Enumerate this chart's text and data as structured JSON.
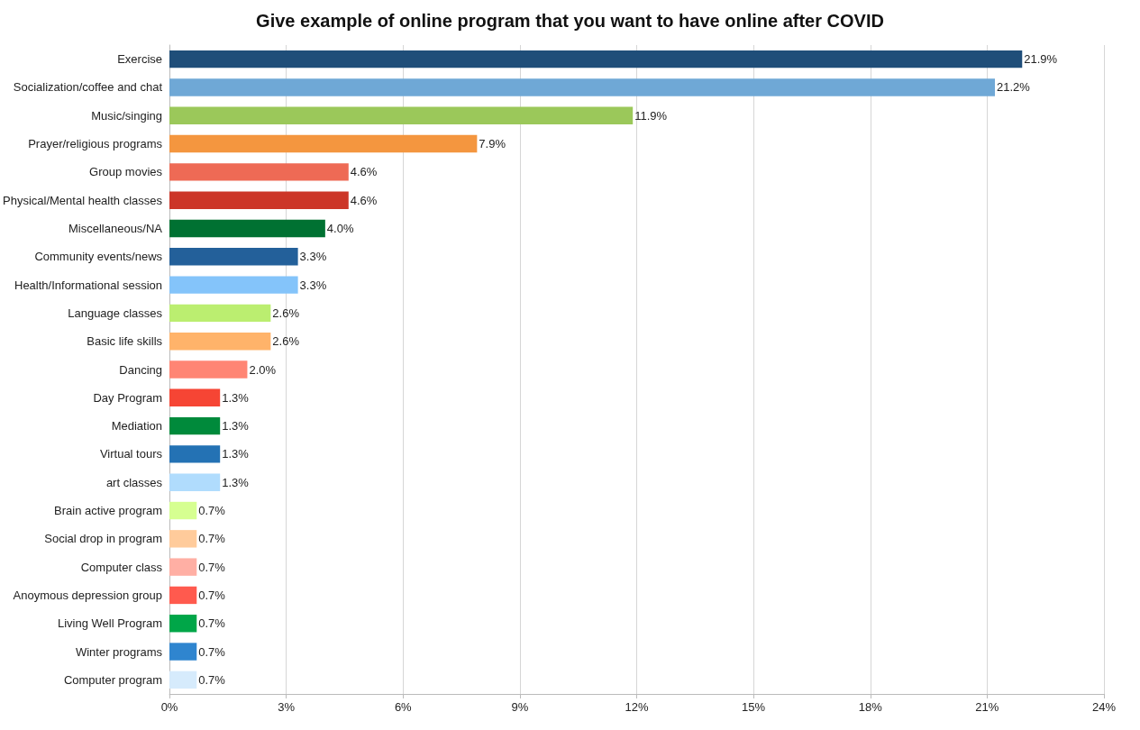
{
  "chart_data": {
    "type": "bar",
    "orientation": "horizontal",
    "title": "Give example of online program that you want to have online after COVID",
    "categories": [
      "Exercise",
      "Socialization/coffee and chat",
      "Music/singing",
      "Prayer/religious programs",
      "Group movies",
      "Physical/Mental health classes",
      "Miscellaneous/NA",
      "Community events/news",
      "Health/Informational session",
      "Language classes",
      "Basic life skills",
      "Dancing",
      "Day Program",
      "Mediation",
      "Virtual tours",
      "art classes",
      "Brain active program",
      "Social drop in program",
      "Computer class",
      "Anoymous depression group",
      "Living Well Program",
      "Winter programs",
      "Computer program"
    ],
    "values": [
      21.9,
      21.2,
      11.9,
      7.9,
      4.6,
      4.6,
      4.0,
      3.3,
      3.3,
      2.6,
      2.6,
      2.0,
      1.3,
      1.3,
      1.3,
      1.3,
      0.7,
      0.7,
      0.7,
      0.7,
      0.7,
      0.7,
      0.7
    ],
    "value_labels": [
      "21.9%",
      "21.2%",
      "11.9%",
      "7.9%",
      "4.6%",
      "4.6%",
      "4.0%",
      "3.3%",
      "3.3%",
      "2.6%",
      "2.6%",
      "2.0%",
      "1.3%",
      "1.3%",
      "1.3%",
      "1.3%",
      "0.7%",
      "0.7%",
      "0.7%",
      "0.7%",
      "0.7%",
      "0.7%",
      "0.7%"
    ],
    "colors": [
      "#1f4e79",
      "#6fa8d6",
      "#9bc85a",
      "#f4963f",
      "#ee6a55",
      "#cc3628",
      "#007132",
      "#23609a",
      "#84c4fa",
      "#bbee70",
      "#ffb36a",
      "#ff8574",
      "#f64534",
      "#008a3b",
      "#2472b4",
      "#b0dcfd",
      "#d6ff91",
      "#ffcb9b",
      "#ffafa4",
      "#ff5a4e",
      "#00a648",
      "#2f85cf",
      "#d6ebfc"
    ],
    "xlim": [
      0,
      24
    ],
    "xticks": [
      {
        "value": 0,
        "label": "0%"
      },
      {
        "value": 3,
        "label": "3%"
      },
      {
        "value": 6,
        "label": "6%"
      },
      {
        "value": 9,
        "label": "9%"
      },
      {
        "value": 12,
        "label": "12%"
      },
      {
        "value": 15,
        "label": "15%"
      },
      {
        "value": 18,
        "label": "18%"
      },
      {
        "value": 21,
        "label": "21%"
      },
      {
        "value": 24,
        "label": "24%"
      }
    ],
    "grid": "x"
  }
}
